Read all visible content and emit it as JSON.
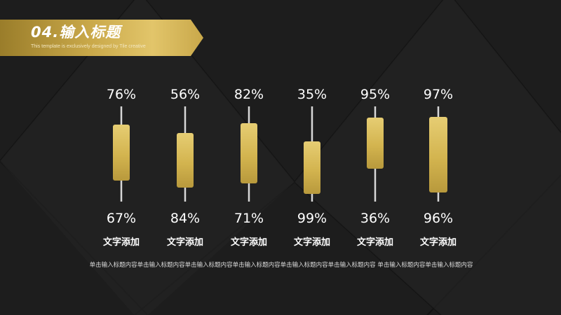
{
  "header": {
    "title": "04.输入标题",
    "subtitle": "This template is exclusively designed by Tile creative"
  },
  "chart_data": {
    "type": "bar",
    "categories": [
      "文字添加",
      "文字添加",
      "文字添加",
      "文字添加",
      "文字添加",
      "文字添加"
    ],
    "series": [
      {
        "values": [
          76,
          56,
          82,
          35,
          95,
          97
        ]
      },
      {
        "values": [
          67,
          84,
          71,
          99,
          36,
          96
        ]
      }
    ],
    "top_labels": [
      "76%",
      "56%",
      "82%",
      "35%",
      "95%",
      "97%"
    ],
    "bottom_labels": [
      "67%",
      "84%",
      "71%",
      "99%",
      "36%",
      "96%"
    ],
    "colors": {
      "bar": "#d7b95a",
      "line": "#d8d8d8",
      "text": "#ffffff"
    }
  },
  "body_text": "单击输入标题内容单击输入标题内容单击输入标题内容单击输入标题内容单击输入标题内容单击输入标题内容 单击输入标题内容单击输入标题内容",
  "colors": {
    "background": "#1c1c1c",
    "accent": "#c9a84a"
  }
}
